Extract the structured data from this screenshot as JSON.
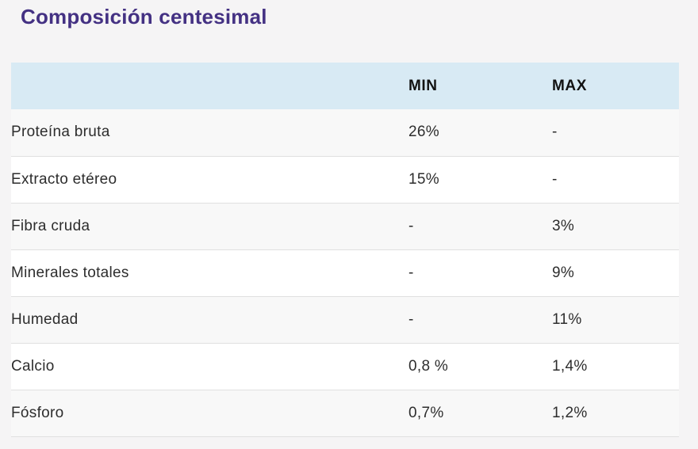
{
  "page": {
    "background_color": "#f5f4f5"
  },
  "title": {
    "text": "Composición centesimal",
    "color": "#443183"
  },
  "table": {
    "header_background": "#d8eaf4",
    "zebra_row_background": "#f8f8f8",
    "border_color": "#e0e0e0",
    "columns": [
      "",
      "MIN",
      "MAX"
    ],
    "rows": [
      {
        "label": "Proteína bruta",
        "min": "26%",
        "max": "-"
      },
      {
        "label": "Extracto etéreo",
        "min": "15%",
        "max": "-"
      },
      {
        "label": "Fibra cruda",
        "min": "-",
        "max": "3%"
      },
      {
        "label": "Minerales totales",
        "min": "-",
        "max": "9%"
      },
      {
        "label": "Humedad",
        "min": "-",
        "max": "11%"
      },
      {
        "label": "Calcio",
        "min": "0,8 %",
        "max": "1,4%"
      },
      {
        "label": "Fósforo",
        "min": "0,7%",
        "max": "1,2%"
      }
    ]
  },
  "chart_data": {
    "type": "table",
    "title": "Composición centesimal",
    "columns": [
      "",
      "MIN",
      "MAX"
    ],
    "rows": [
      [
        "Proteína bruta",
        "26%",
        "-"
      ],
      [
        "Extracto etéreo",
        "15%",
        "-"
      ],
      [
        "Fibra cruda",
        "-",
        "3%"
      ],
      [
        "Minerales totales",
        "-",
        "9%"
      ],
      [
        "Humedad",
        "-",
        "11%"
      ],
      [
        "Calcio",
        "0,8 %",
        "1,4%"
      ],
      [
        "Fósforo",
        "0,7%",
        "1,2%"
      ]
    ]
  }
}
